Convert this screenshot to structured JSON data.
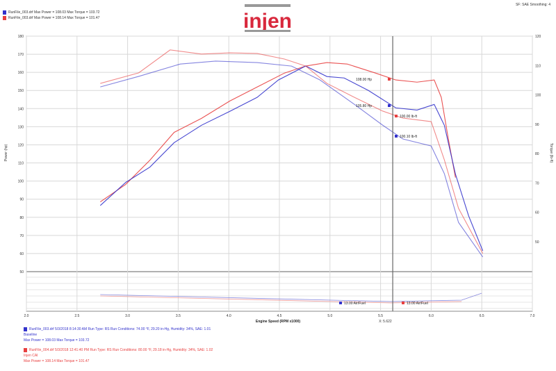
{
  "header": {
    "run1": "RunFile_003.drf Max Power = 108.03   Max Torque = 103.72",
    "run2": "RunFile_003.drf Max Power = 108.14   Max Torque = 101.47",
    "top_right": "SF: SAE  Smoothing: 4",
    "logo": "injen"
  },
  "colors": {
    "blue": "#3333cc",
    "red": "#e84040",
    "grid": "#d8d8d8",
    "cursor": "#666666"
  },
  "chart_data": {
    "type": "line",
    "xlabel": "Engine Speed (RPM x1000)",
    "ylabel": "Power (hp)",
    "y2label": "Torque (lb-ft)",
    "xlim": [
      2.0,
      7.0
    ],
    "ylim": [
      50,
      180
    ],
    "y2lim": [
      50,
      120
    ],
    "x_ticks": [
      "2.0",
      "2.5",
      "3.0",
      "3.5",
      "4.0",
      "4.5",
      "5.0",
      "5.5",
      "6.0",
      "6.5",
      "7.0"
    ],
    "y_ticks": [
      "180",
      "170",
      "160",
      "150",
      "140",
      "130",
      "120",
      "110",
      "100",
      "90",
      "80",
      "70",
      "60",
      "50"
    ],
    "y2_ticks": [
      "120",
      "110",
      "100",
      "90",
      "80",
      "70",
      "60",
      "50"
    ],
    "grid": true,
    "cursor_x": 5.62,
    "cursor_label": "X: 5.622",
    "series": [
      {
        "axis": "power",
        "color": "#e84040",
        "x": [
          2.73,
          2.98,
          3.22,
          3.46,
          3.73,
          4.01,
          4.28,
          4.55,
          4.76,
          4.97,
          5.17,
          5.45,
          5.65,
          5.86,
          6.03,
          6.1,
          6.17,
          6.24
        ],
        "y": [
          88.5,
          98.1,
          111.5,
          126.9,
          134.6,
          144.2,
          151.9,
          159.6,
          163.5,
          165.4,
          164.6,
          159.6,
          155.8,
          154.6,
          155.8,
          146.2,
          123.1,
          101.9
        ]
      },
      {
        "axis": "power",
        "color": "#3333cc",
        "x": [
          2.73,
          2.98,
          3.22,
          3.46,
          3.73,
          4.01,
          4.28,
          4.49,
          4.76,
          4.97,
          5.14,
          5.38,
          5.65,
          5.86,
          6.03,
          6.13,
          6.24,
          6.37,
          6.51
        ],
        "y": [
          86.5,
          99.2,
          107.7,
          121.2,
          130.8,
          138.5,
          146.2,
          155.8,
          163.5,
          157.7,
          156.9,
          150.0,
          140.4,
          139.2,
          142.3,
          130.8,
          103.8,
          80.8,
          61.5
        ]
      },
      {
        "axis": "torque",
        "color": "#e84040",
        "x": [
          2.73,
          3.11,
          3.42,
          3.73,
          4.01,
          4.28,
          4.55,
          4.76,
          4.97,
          5.24,
          5.52,
          5.72,
          6.0,
          6.13,
          6.27,
          6.51
        ],
        "y": [
          103.9,
          107.5,
          115.3,
          113.9,
          114.3,
          114.1,
          112.2,
          109.8,
          103.9,
          99.2,
          94.5,
          92.1,
          90.9,
          77.9,
          61.4,
          46.0
        ]
      },
      {
        "axis": "torque",
        "color": "#3333cc",
        "x": [
          2.73,
          3.11,
          3.52,
          3.87,
          4.28,
          4.62,
          4.9,
          5.24,
          5.52,
          5.72,
          6.0,
          6.13,
          6.27,
          6.51
        ],
        "y": [
          102.7,
          106.3,
          110.5,
          111.5,
          111.0,
          109.8,
          105.1,
          96.8,
          89.7,
          85.0,
          82.6,
          73.2,
          56.6,
          44.8
        ]
      }
    ],
    "annotations": [
      {
        "text": "108.00 Hp",
        "color": "#e84040"
      },
      {
        "text": "105.80 Hp",
        "color": "#3333cc"
      },
      {
        "text": "100.00 lb-ft",
        "color": "#e84040"
      },
      {
        "text": "100.10 lb-ft",
        "color": "#3333cc"
      },
      {
        "text": "13.00 Air/Fuel",
        "color": "#3333cc"
      },
      {
        "text": "13.00 Air/Fuel",
        "color": "#e84040"
      }
    ]
  },
  "legend": [
    {
      "color": "#3333cc",
      "line1": "RunFile_003.drf  5/3/2018 8:14:30 AM  Run Type: RS  Run Conditions: 74.00 °F, 29.20 in-Hg, Humidity: 34%, SAE: 1.01",
      "line2": "Baseline",
      "line3": "Max Power = 108.03  Max Torque = 103.72"
    },
    {
      "color": "#e84040",
      "line1": "RunFile_004.drf  5/3/2018 12:41:40 PM  Run Type: RS  Run Conditions: 80.00 °F, 29.18 in-Hg, Humidity: 34%, SAE: 1.02",
      "line2": "Injen CAI",
      "line3": "Max Power = 108.14  Max Torque = 101.47"
    }
  ]
}
